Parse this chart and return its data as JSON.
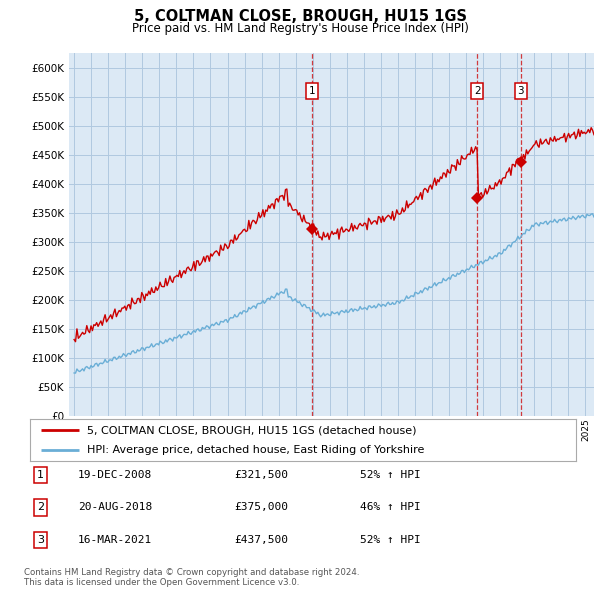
{
  "title": "5, COLTMAN CLOSE, BROUGH, HU15 1GS",
  "subtitle": "Price paid vs. HM Land Registry's House Price Index (HPI)",
  "yticks": [
    0,
    50000,
    100000,
    150000,
    200000,
    250000,
    300000,
    350000,
    400000,
    450000,
    500000,
    550000,
    600000
  ],
  "xlim_start": 1994.7,
  "xlim_end": 2025.5,
  "ylim": [
    0,
    625000
  ],
  "background_color": "#ffffff",
  "chart_bg_color": "#dce9f5",
  "grid_color": "#b0c8e0",
  "hpi_color": "#6aaed6",
  "price_color": "#cc0000",
  "transactions": [
    {
      "date_num": 2008.97,
      "price": 321500,
      "label": "1"
    },
    {
      "date_num": 2018.64,
      "price": 375000,
      "label": "2"
    },
    {
      "date_num": 2021.21,
      "price": 437500,
      "label": "3"
    }
  ],
  "transaction_vlines": [
    2008.97,
    2018.64,
    2021.21
  ],
  "legend_entries": [
    {
      "label": "5, COLTMAN CLOSE, BROUGH, HU15 1GS (detached house)",
      "color": "#cc0000"
    },
    {
      "label": "HPI: Average price, detached house, East Riding of Yorkshire",
      "color": "#6aaed6"
    }
  ],
  "table_rows": [
    {
      "num": "1",
      "date": "19-DEC-2008",
      "price": "£321,500",
      "hpi": "52% ↑ HPI"
    },
    {
      "num": "2",
      "date": "20-AUG-2018",
      "price": "£375,000",
      "hpi": "46% ↑ HPI"
    },
    {
      "num": "3",
      "date": "16-MAR-2021",
      "price": "£437,500",
      "hpi": "52% ↑ HPI"
    }
  ],
  "footnote": "Contains HM Land Registry data © Crown copyright and database right 2024.\nThis data is licensed under the Open Government Licence v3.0."
}
